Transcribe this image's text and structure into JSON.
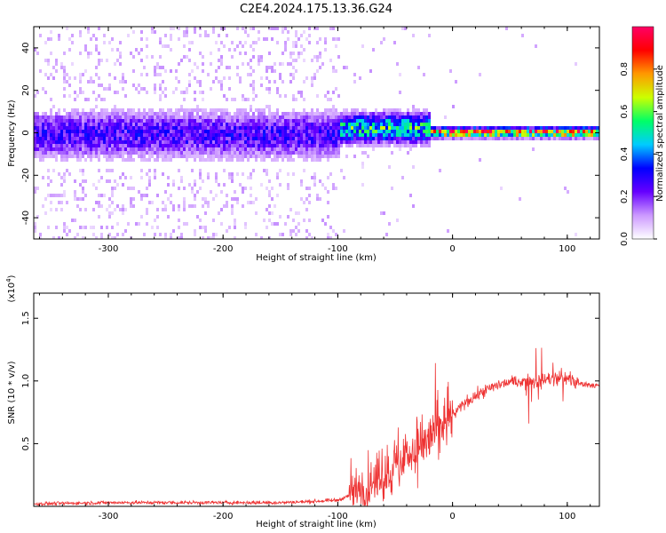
{
  "figure_title": "C2E4.2024.175.13.36.G24",
  "chart_data": [
    {
      "type": "heatmap",
      "xlabel": "Height of straight line (km)",
      "ylabel": "Frequency (Hz)",
      "xlim": [
        -365,
        128
      ],
      "ylim": [
        -50,
        50
      ],
      "x_ticks": [
        -300,
        -200,
        -100,
        0,
        100
      ],
      "x_tick_labels": [
        "-300",
        "-200",
        "-100",
        "0",
        "100"
      ],
      "y_ticks": [
        -40,
        -20,
        0,
        20,
        40
      ],
      "y_tick_labels": [
        "-40",
        "-20",
        "0",
        "20",
        "40"
      ],
      "colorbar": {
        "label": "Normalized spectral amplitude",
        "range": [
          0.0,
          1.0
        ],
        "ticks": [
          0.0,
          0.2,
          0.4,
          0.6,
          0.8
        ],
        "tick_labels": [
          "0.0",
          "0.2",
          "0.4",
          "0.6",
          "0.8"
        ],
        "colormap": [
          "#ffffff",
          "#cc99ff",
          "#6600ff",
          "#0000ff",
          "#00ccff",
          "#00ff66",
          "#ccff00",
          "#ff9900",
          "#ff0000",
          "#ff0066"
        ]
      },
      "features": [
        {
          "region": "x from -365 to -100",
          "band_center_hz": 0,
          "band_halfwidth_hz": 10,
          "amplitude": 0.25,
          "background_scatter": "sparse light purple over full frequency range"
        },
        {
          "region": "x from -100 to -20",
          "band_center_hz": 3,
          "band_halfwidth_hz": 6,
          "amplitude": 0.5
        },
        {
          "region": "x from -20 to 128",
          "band_center_hz": 1,
          "band_halfwidth_hz": 2,
          "amplitude": 0.85
        }
      ]
    },
    {
      "type": "line",
      "xlabel": "Height of straight line (km)",
      "ylabel": "SNR (10 * v/v)",
      "y_multiplier_label": "(x10",
      "y_multiplier_exp": "4",
      "y_multiplier_close": ")",
      "xlim": [
        -365,
        128
      ],
      "ylim": [
        0,
        1.7
      ],
      "x_ticks": [
        -300,
        -200,
        -100,
        0,
        100
      ],
      "x_tick_labels": [
        "-300",
        "-200",
        "-100",
        "0",
        "100"
      ],
      "y_ticks": [
        0.5,
        1.0,
        1.5
      ],
      "y_tick_labels": [
        "0.5",
        "1.0",
        "1.5"
      ],
      "series": [
        {
          "color": "#ee3333",
          "x": [
            -365,
            -300,
            -250,
            -200,
            -150,
            -120,
            -100,
            -80,
            -60,
            -50,
            -40,
            -30,
            -20,
            -10,
            0,
            10,
            20,
            30,
            40,
            50,
            60,
            70,
            80,
            90,
            100,
            110,
            120,
            128
          ],
          "y": [
            0.02,
            0.03,
            0.03,
            0.03,
            0.03,
            0.04,
            0.05,
            0.12,
            0.25,
            0.32,
            0.4,
            0.48,
            0.55,
            0.62,
            0.72,
            0.82,
            0.88,
            0.93,
            0.97,
            0.99,
            1.0,
            1.0,
            1.01,
            1.02,
            1.02,
            0.98,
            0.97,
            0.96
          ]
        }
      ]
    }
  ]
}
